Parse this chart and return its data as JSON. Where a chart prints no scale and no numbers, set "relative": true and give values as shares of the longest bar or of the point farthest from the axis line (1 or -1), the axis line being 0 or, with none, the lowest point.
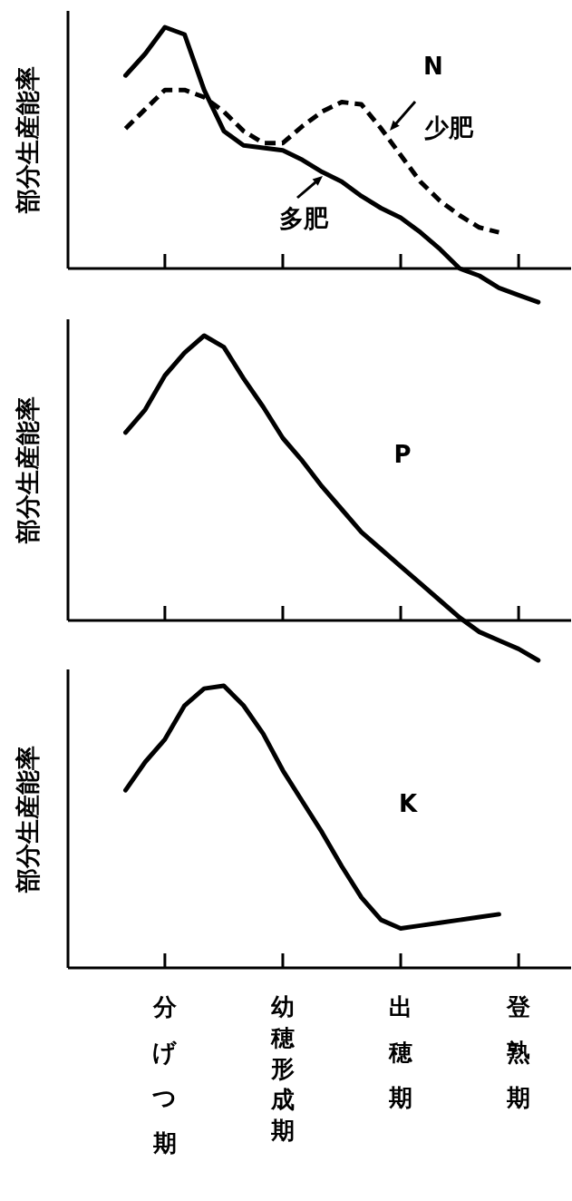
{
  "chart_data": [
    {
      "type": "line",
      "relative": true,
      "ylabel": "部分生産能率",
      "tick_labels": false,
      "annotations": [
        "N"
      ],
      "categories": [
        null,
        null,
        "分げつ期",
        null,
        null,
        null,
        null,
        null,
        "幼穂形成期",
        null,
        null,
        null,
        null,
        null,
        "出穂期",
        null,
        null,
        null,
        null,
        null,
        "登熟期",
        null
      ],
      "series": [
        {
          "name": "多肥",
          "color": "#000000",
          "line_style": "solid",
          "values": [
            0.8,
            0.89,
            1,
            0.97,
            0.74,
            0.57,
            0.51,
            0.5,
            0.49,
            0.45,
            0.4,
            0.36,
            0.3,
            0.25,
            0.21,
            0.15,
            0.08,
            0,
            -0.03,
            -0.08,
            -0.11,
            -0.14
          ]
        },
        {
          "name": "少肥",
          "color": "#000000",
          "line_style": "dashed",
          "values": [
            0.58,
            0.66,
            0.74,
            0.74,
            0.71,
            0.65,
            0.57,
            0.52,
            0.52,
            0.59,
            0.65,
            0.69,
            0.68,
            0.58,
            0.47,
            0.36,
            0.28,
            0.22,
            0.17,
            0.15,
            null,
            null
          ]
        }
      ]
    },
    {
      "type": "line",
      "relative": true,
      "ylabel": "部分生産能率",
      "tick_labels": false,
      "annotations": [
        "P"
      ],
      "categories": [
        null,
        null,
        "分げつ期",
        null,
        null,
        null,
        null,
        null,
        "幼穂形成期",
        null,
        null,
        null,
        null,
        null,
        "出穂期",
        null,
        null,
        null,
        null,
        null,
        "登熟期",
        null
      ],
      "series": [
        {
          "color": "#000000",
          "line_style": "solid",
          "values": [
            0.66,
            0.74,
            0.86,
            0.94,
            1,
            0.96,
            0.85,
            0.75,
            0.64,
            0.56,
            0.47,
            0.39,
            0.31,
            0.25,
            0.19,
            0.13,
            0.07,
            0.01,
            -0.04,
            -0.07,
            -0.1,
            -0.14
          ]
        }
      ]
    },
    {
      "type": "line",
      "relative": true,
      "ylabel": "部分生産能率",
      "tick_labels": "x",
      "annotations": [
        "K"
      ],
      "categories": [
        null,
        null,
        "分げつ期",
        null,
        null,
        null,
        null,
        null,
        "幼穂形成期",
        null,
        null,
        null,
        null,
        null,
        "出穂期",
        null,
        null,
        null,
        null,
        null,
        "登熟期",
        null
      ],
      "series": [
        {
          "color": "#000000",
          "line_style": "solid",
          "values": [
            0.63,
            0.73,
            0.81,
            0.93,
            0.99,
            1,
            0.93,
            0.83,
            0.7,
            0.59,
            0.48,
            0.36,
            0.25,
            0.17,
            0.14,
            0.15,
            0.16,
            0.17,
            0.18,
            0.19,
            null,
            null
          ]
        }
      ]
    }
  ]
}
